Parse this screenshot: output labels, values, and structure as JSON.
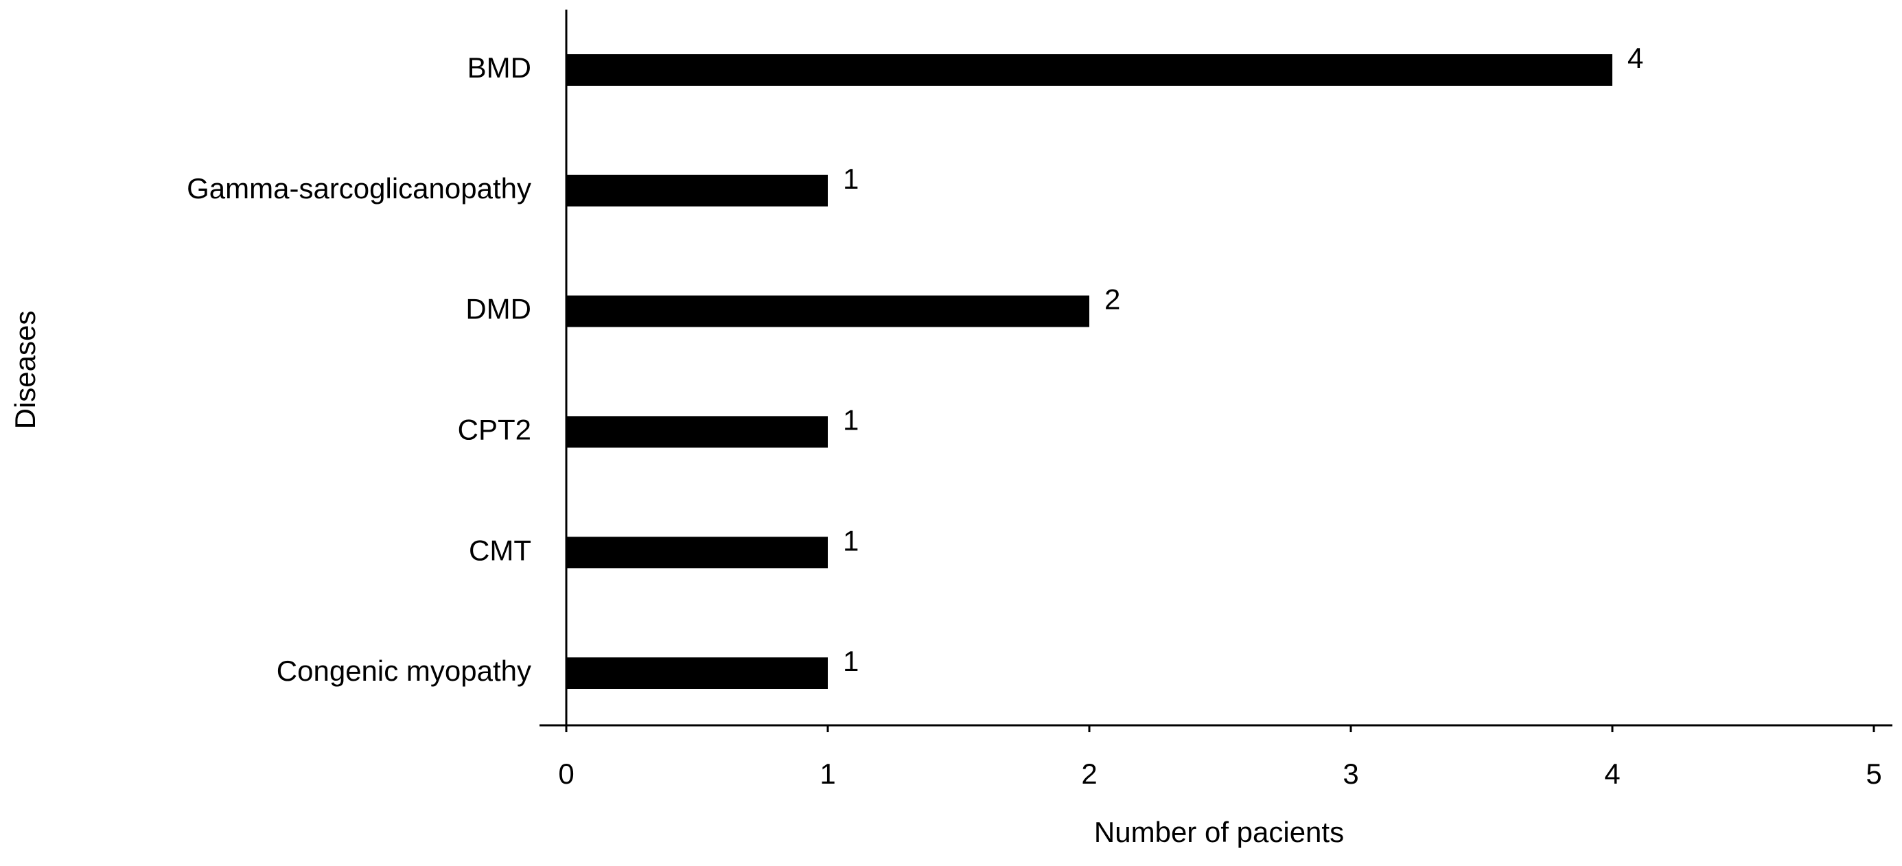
{
  "chart_data": {
    "type": "bar",
    "orientation": "horizontal",
    "categories": [
      "BMD",
      "Gamma-sarcoglicanopathy",
      "DMD",
      "CPT2",
      "CMT",
      "Congenic myopathy"
    ],
    "values": [
      4,
      1,
      2,
      1,
      1,
      1
    ],
    "color": "#000000",
    "xlim": [
      0,
      5
    ],
    "xticks": [
      0,
      1,
      2,
      3,
      4,
      5
    ],
    "x_label": "Number of pacients",
    "y_label": "Diseases",
    "grid": false
  }
}
